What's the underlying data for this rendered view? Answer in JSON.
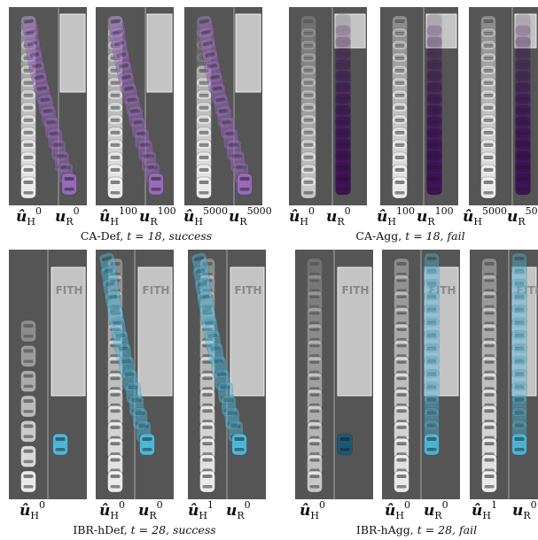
{
  "captions": [
    {
      "pre": "CA-Def, ",
      "t": "t = 18, ",
      "outcome": "success"
    },
    {
      "pre": "CA-Agg, ",
      "t": "t = 18, ",
      "outcome": "fail"
    },
    {
      "pre": "IBR-hDef, ",
      "t": "t = 28, ",
      "outcome": "success"
    },
    {
      "pre": "IBR-hAgg, ",
      "t": "t = 28, ",
      "outcome": "fail"
    }
  ],
  "truck_label": "FITH",
  "sym": {
    "h": "û",
    "h_sub": "H",
    "r": "u",
    "r_sub": "R"
  },
  "sup": {
    "s0": "0",
    "s100": "100",
    "s5000": "5000",
    "s1": "1"
  },
  "colors": {
    "road": "#555555",
    "shoulder": "#909090",
    "truck": "#c4c4c4",
    "human_car": "#f2f2f2",
    "ca_def_robot": "#9b6bbf",
    "ca_agg_robot": "#3d0f57",
    "ibr_def_robot": "#4fbbe0",
    "ibr_agg_robot": "#175a78"
  }
}
